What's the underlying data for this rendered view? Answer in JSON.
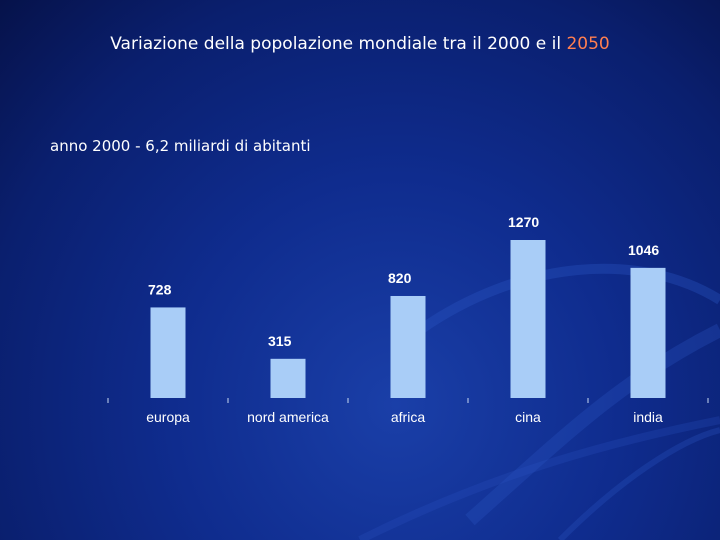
{
  "slide": {
    "title_main": "Variazione della popolazione mondiale tra il 2000 e il",
    "title_accent": "2050",
    "subtitle": "anno 2000 - 6,2 miliardi di abitanti"
  },
  "colors": {
    "bar": "#a9cdf7",
    "accent": "#ff7f50"
  },
  "chart_data": {
    "type": "bar",
    "categories": [
      "europa",
      "nord america",
      "africa",
      "cina",
      "india"
    ],
    "values": [
      728,
      315,
      820,
      1270,
      1046
    ],
    "value_labels": [
      "728",
      "315",
      "820",
      "1270",
      "1046"
    ],
    "title": "",
    "xlabel": "",
    "ylabel": "",
    "ylim": [
      0,
      1270
    ],
    "grid": false,
    "legend": "none"
  }
}
